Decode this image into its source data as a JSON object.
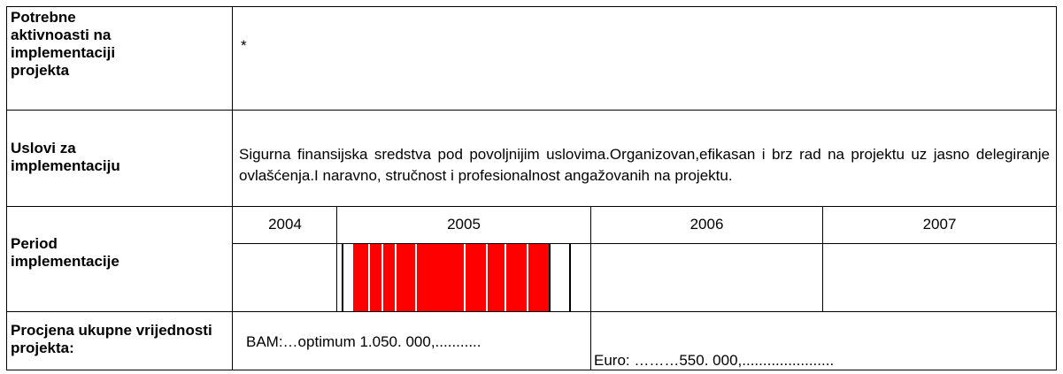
{
  "rows": [
    {
      "label": "Potrebne aktivnoasti na implementaciji projekta",
      "content": "*"
    },
    {
      "label": "Uslovi za implementaciju",
      "content": "Sigurna finansijska sredstva pod povoljnijim uslovima.Organizovan,efikasan i brz rad na projektu uz jasno delegiranje ovlašćenja.I naravno, stručnost i profesionalnost angažovanih na projektu."
    },
    {
      "label": "Period implementacije",
      "years": [
        "2004",
        "2005",
        "2006",
        "2007"
      ]
    },
    {
      "label": "Procjena ukupne vrijednosti projekta:",
      "bam": "BAM:…optimum 1.050. 000,...........",
      "euro": "Euro: ………550. 000,......................"
    }
  ]
}
